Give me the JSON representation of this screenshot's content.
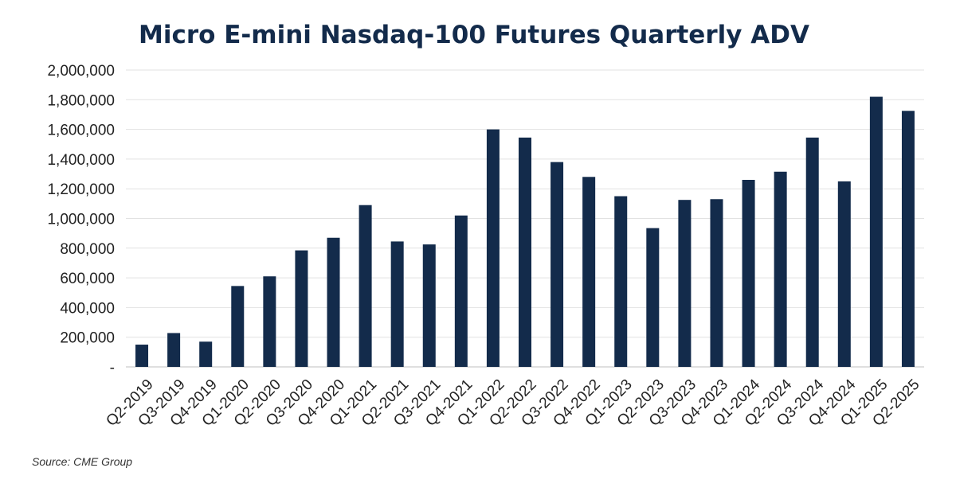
{
  "source": "Source: CME Group",
  "colors": {
    "bar": "#132b4b",
    "title": "#132b4b"
  },
  "chart_data": {
    "type": "bar",
    "title": "Micro E-mini Nasdaq-100 Futures Quarterly ADV",
    "xlabel": "",
    "ylabel": "",
    "ylim": [
      0,
      2000000
    ],
    "yticks": [
      0,
      200000,
      400000,
      600000,
      800000,
      1000000,
      1200000,
      1400000,
      1600000,
      1800000,
      2000000
    ],
    "ytick_labels": [
      "-",
      "200,000",
      "400,000",
      "600,000",
      "800,000",
      "1,000,000",
      "1,200,000",
      "1,400,000",
      "1,600,000",
      "1,800,000",
      "2,000,000"
    ],
    "grid": true,
    "categories": [
      "Q2-2019",
      "Q3-2019",
      "Q4-2019",
      "Q1-2020",
      "Q2-2020",
      "Q3-2020",
      "Q4-2020",
      "Q1-2021",
      "Q2-2021",
      "Q3-2021",
      "Q4-2021",
      "Q1-2022",
      "Q2-2022",
      "Q3-2022",
      "Q4-2022",
      "Q1-2023",
      "Q2-2023",
      "Q3-2023",
      "Q4-2023",
      "Q1-2024",
      "Q2-2024",
      "Q3-2024",
      "Q4-2024",
      "Q1-2025",
      "Q2-2025"
    ],
    "values": [
      150000,
      228000,
      170000,
      545000,
      610000,
      785000,
      870000,
      1090000,
      845000,
      825000,
      1020000,
      1600000,
      1545000,
      1380000,
      1280000,
      1150000,
      935000,
      1125000,
      1130000,
      1260000,
      1315000,
      1545000,
      1250000,
      1820000,
      1725000
    ]
  }
}
